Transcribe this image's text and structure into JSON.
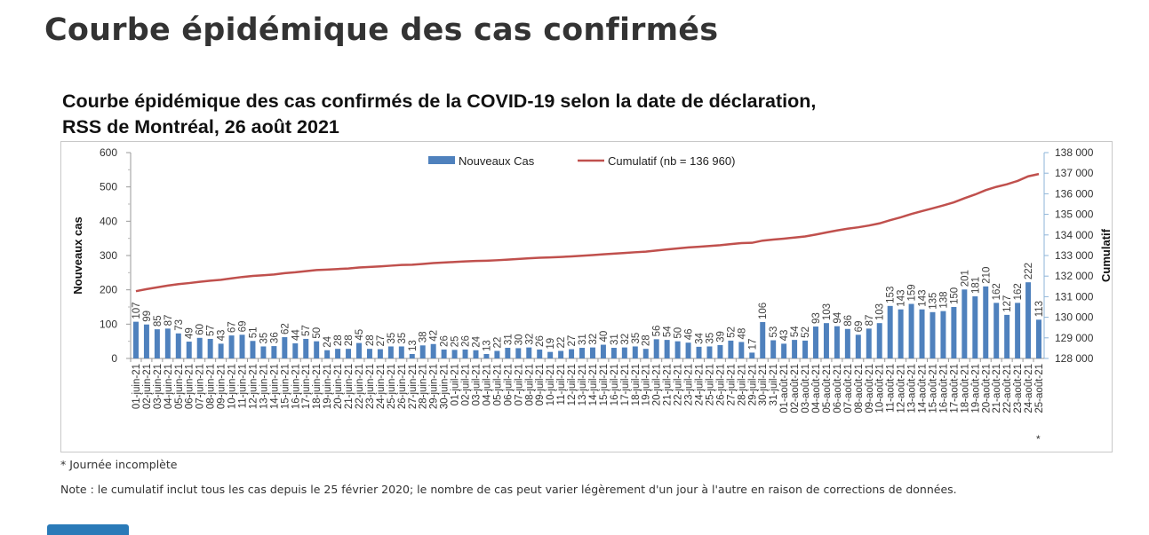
{
  "page": {
    "heading": "Courbe épidémique des cas confirmés",
    "footnote": "* Journée incomplète",
    "note": "Note : le cumulatif inclut tous les cas depuis le 25 février 2020; le nombre de cas peut varier légèrement d'un jour à l'autre en raison de corrections de données."
  },
  "chart_data": {
    "type": "bar+line",
    "title": [
      "Courbe épidémique des cas confirmés de la COVID-19 selon la date de déclaration,",
      "RSS de Montréal, 26 août 2021"
    ],
    "ylabel": "Nouveaux cas",
    "y2label": "Cumulatif",
    "ylim": [
      0,
      600
    ],
    "yticks": [
      0,
      100,
      200,
      300,
      400,
      500,
      600
    ],
    "y2lim": [
      128000,
      138000
    ],
    "y2ticks": [
      "128 000",
      "129 000",
      "130 000",
      "131 000",
      "132 000",
      "133 000",
      "134 000",
      "135 000",
      "136 000",
      "137 000",
      "138 000"
    ],
    "legend": {
      "placement": "top-center",
      "bar": "Nouveaux Cas",
      "line": "Cumulatif (nb = 136 960)"
    },
    "colors": {
      "bar": "#4f81bd",
      "line": "#c0504d"
    },
    "incomplete_marker": "*",
    "cumulative_before_start": 131161,
    "cumulative_final": 136960,
    "categories": [
      "01-juin-21",
      "02-juin-21",
      "03-juin-21",
      "04-juin-21",
      "05-juin-21",
      "06-juin-21",
      "07-juin-21",
      "08-juin-21",
      "09-juin-21",
      "10-juin-21",
      "11-juin-21",
      "12-juin-21",
      "13-juin-21",
      "14-juin-21",
      "15-juin-21",
      "16-juin-21",
      "17-juin-21",
      "18-juin-21",
      "19-juin-21",
      "20-juin-21",
      "21-juin-21",
      "22-juin-21",
      "23-juin-21",
      "24-juin-21",
      "25-juin-21",
      "26-juin-21",
      "27-juin-21",
      "28-juin-21",
      "29-juin-21",
      "30-juin-21",
      "01-juil-21",
      "02-juil-21",
      "03-juil-21",
      "04-juil-21",
      "05-juil-21",
      "06-juil-21",
      "07-juil-21",
      "08-juil-21",
      "09-juil-21",
      "10-juil-21",
      "11-juil-21",
      "12-juil-21",
      "13-juil-21",
      "14-juil-21",
      "15-juil-21",
      "16-juil-21",
      "17-juil-21",
      "18-juil-21",
      "19-juil-21",
      "20-juil-21",
      "21-juil-21",
      "22-juil-21",
      "23-juil-21",
      "24-juil-21",
      "25-juil-21",
      "26-juil-21",
      "27-juil-21",
      "28-juil-21",
      "29-juil-21",
      "30-juil-21",
      "31-juil-21",
      "01-août-21",
      "02-août-21",
      "03-août-21",
      "04-août-21",
      "05-août-21",
      "06-août-21",
      "07-août-21",
      "08-août-21",
      "09-août-21",
      "10-août-21",
      "11-août-21",
      "12-août-21",
      "13-août-21",
      "14-août-21",
      "15-août-21",
      "16-août-21",
      "17-août-21",
      "18-août-21",
      "19-août-21",
      "20-août-21",
      "21-août-21",
      "22-août-21",
      "23-août-21",
      "24-août-21",
      "25-août-21"
    ],
    "values": [
      107,
      99,
      85,
      87,
      73,
      49,
      60,
      57,
      43,
      67,
      69,
      51,
      35,
      36,
      62,
      44,
      57,
      50,
      24,
      28,
      28,
      45,
      28,
      27,
      35,
      35,
      13,
      38,
      42,
      26,
      25,
      26,
      24,
      13,
      22,
      31,
      30,
      32,
      26,
      19,
      22,
      27,
      31,
      32,
      40,
      31,
      32,
      35,
      28,
      56,
      54,
      50,
      46,
      34,
      35,
      39,
      52,
      48,
      17,
      106,
      53,
      43,
      54,
      52,
      93,
      103,
      94,
      86,
      69,
      87,
      103,
      153,
      143,
      159,
      143,
      135,
      138,
      150,
      201,
      181,
      210,
      162,
      127,
      162,
      222,
      113
    ]
  }
}
